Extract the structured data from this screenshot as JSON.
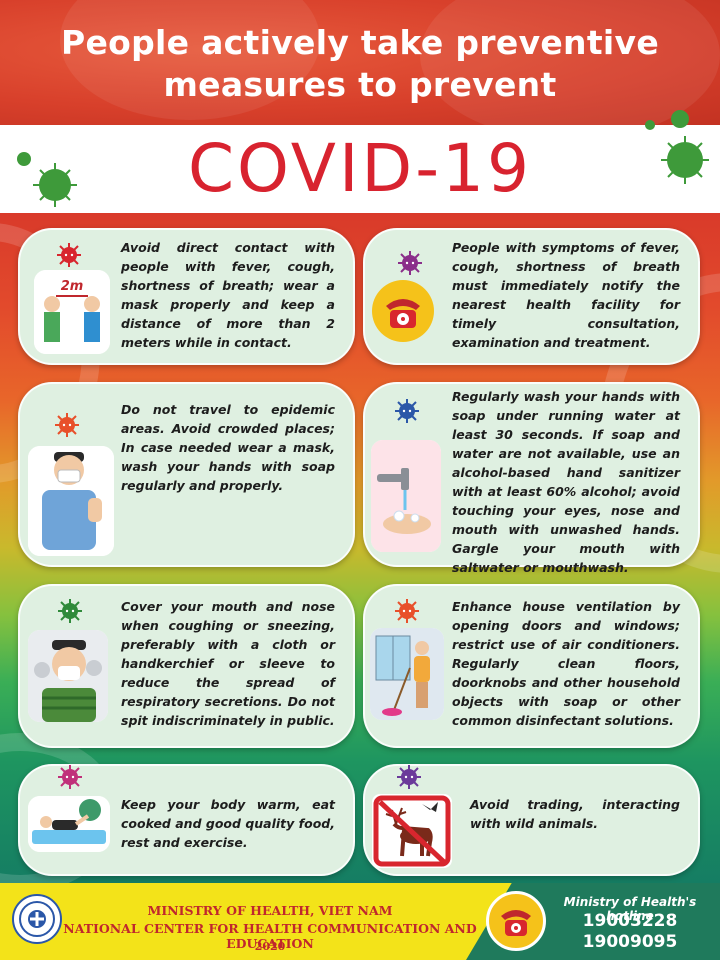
{
  "header": {
    "title_line1": "People actively take preventive",
    "title_line2": "measures to prevent",
    "covid": "COVID-19"
  },
  "cards": [
    {
      "text": "Avoid direct contact with people with fever, cough, shortness of breath; wear a mask properly and keep a distance of more than 2 meters while in contact.",
      "virus_color": "#d8262e",
      "icon": "distance-2m-icon",
      "distance_label": "2m"
    },
    {
      "text": "People with symptoms of fever, cough, shortness of breath must immediately notify the nearest health facility for timely consultation, examination and treatment.",
      "virus_color": "#8a2e8a",
      "icon": "telephone-icon"
    },
    {
      "text": "Do not travel to epidemic areas. Avoid crowded places; In case needed wear a mask, wash your hands with soap regularly and properly.",
      "virus_color": "#e8502a",
      "icon": "masked-man-icon"
    },
    {
      "text": "Regularly wash your hands with soap under running water at least 30 seconds. If soap and water are not available, use an alcohol-based hand sanitizer with at least 60% alcohol; avoid touching your eyes, nose and mouth with unwashed hands. Gargle your mouth with saltwater or mouthwash.",
      "virus_color": "#2b57a8",
      "icon": "hand-washing-icon"
    },
    {
      "text": "Cover your mouth and nose when coughing or sneezing, preferably with a cloth or handkerchief or sleeve to reduce the spread of respiratory secretions. Do not spit indiscriminately in public.",
      "virus_color": "#2f8a3a",
      "icon": "sneezing-man-icon"
    },
    {
      "text": "Enhance house ventilation by opening doors and windows; restrict use of air conditioners. Regularly clean floors, doorknobs and other household objects with soap or other common disinfectant solutions.",
      "virus_color": "#e8502a",
      "icon": "cleaning-woman-icon"
    },
    {
      "text": "Keep your body warm, eat cooked and good quality food, rest and exercise.",
      "virus_color": "#c0307a",
      "icon": "exercise-icon"
    },
    {
      "text": "Avoid trading, interacting with wild animals.",
      "virus_color": "#6b3a9a",
      "icon": "no-wild-animals-icon"
    }
  ],
  "footer": {
    "org_line1": "MINISTRY OF HEALTH, VIET NAM",
    "org_line2": "NATIONAL CENTER FOR HEALTH COMMUNICATION AND EDUCATION",
    "year": "2020",
    "hotline_label": "Ministry of Health's hotline",
    "hotline_1": "19003228",
    "hotline_2": "19009095"
  },
  "colors": {
    "header_red": "#d8402b",
    "covid_red": "#d8232f",
    "card_bg": "#dff0e1",
    "footer_yellow": "#f3e319",
    "footer_text": "#c0272d",
    "hotline_green": "#1f7a5c",
    "virus_green": "#3e9a3a"
  }
}
